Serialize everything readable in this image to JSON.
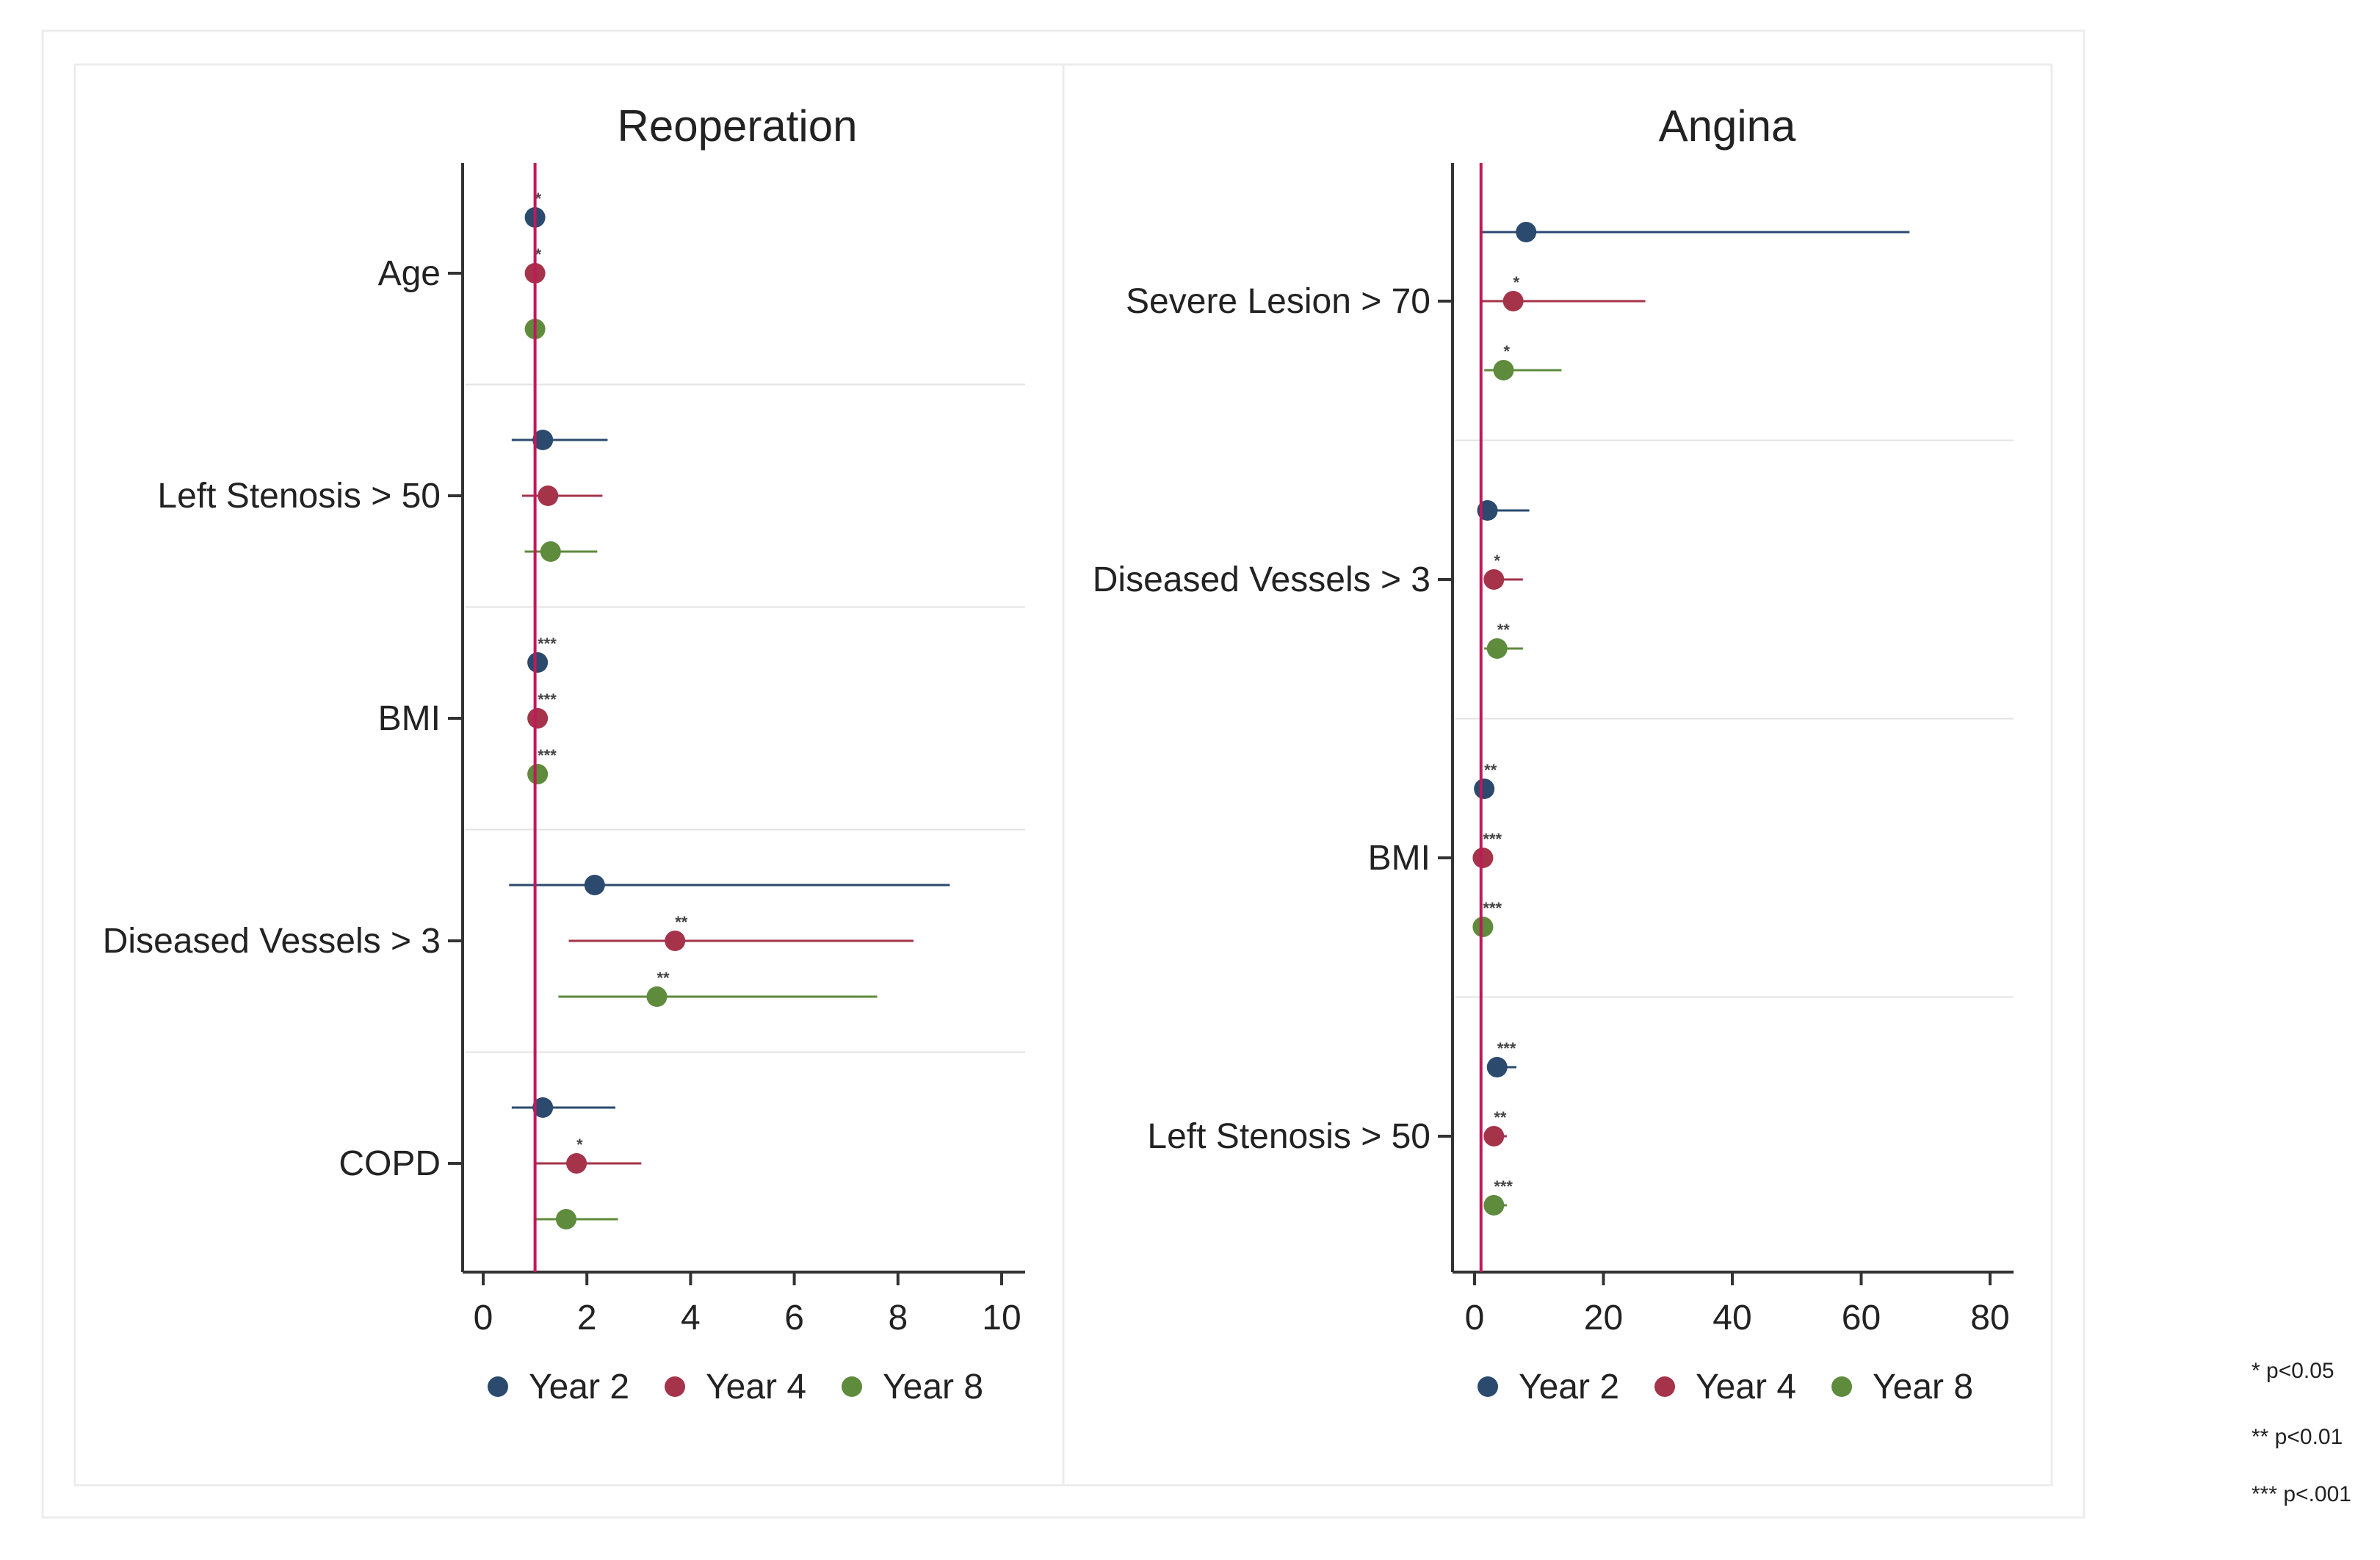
{
  "colors": {
    "year2": "#2b4a6e",
    "year4": "#a5334a",
    "year8": "#5e8b3c",
    "reference_line": "#c2185b",
    "axis": "#333333",
    "text": "#222222",
    "separator": "#e3e3e3",
    "frame": "#e6e6e6"
  },
  "chart_data": [
    {
      "type": "forest",
      "title": "Reoperation",
      "xlim": [
        -0.5,
        10.5
      ],
      "xticks": [
        0,
        2,
        4,
        6,
        8,
        10
      ],
      "reference_value": 1,
      "categories": [
        "Age",
        "Left Stenosis > 50",
        "BMI",
        "Diseased Vessels > 3",
        "COPD"
      ],
      "series": [
        {
          "name": "Year 2",
          "estimates": [
            1.0,
            1.15,
            1.05,
            2.15,
            1.15
          ],
          "lower": [
            1.0,
            0.55,
            1.0,
            0.5,
            0.55
          ],
          "upper": [
            1.0,
            2.4,
            1.05,
            9.0,
            2.55
          ],
          "significance": [
            "*",
            "",
            "***",
            "",
            ""
          ]
        },
        {
          "name": "Year 4",
          "estimates": [
            1.0,
            1.25,
            1.05,
            3.7,
            1.8
          ],
          "lower": [
            1.0,
            0.75,
            1.0,
            1.65,
            1.0
          ],
          "upper": [
            1.0,
            2.3,
            1.05,
            8.3,
            3.05
          ],
          "significance": [
            "*",
            "",
            "***",
            "**",
            "*"
          ]
        },
        {
          "name": "Year 8",
          "estimates": [
            1.0,
            1.3,
            1.05,
            3.35,
            1.6
          ],
          "lower": [
            1.0,
            0.8,
            1.0,
            1.45,
            1.0
          ],
          "upper": [
            1.0,
            2.2,
            1.05,
            7.6,
            2.6
          ],
          "significance": [
            "",
            "",
            "***",
            "**",
            ""
          ]
        }
      ],
      "legend": [
        "Year 2",
        "Year 4",
        "Year 8"
      ]
    },
    {
      "type": "forest",
      "title": "Angina",
      "xlim": [
        -3.5,
        81.5
      ],
      "xticks": [
        0,
        20,
        40,
        60,
        80
      ],
      "reference_value": 1,
      "categories": [
        "Severe Lesion > 70",
        "Diseased Vessels > 3",
        "BMI",
        "Left Stenosis > 50"
      ],
      "series": [
        {
          "name": "Year 2",
          "estimates": [
            8.0,
            2.0,
            1.5,
            3.5
          ],
          "lower": [
            1.0,
            1.0,
            1.0,
            2.0
          ],
          "upper": [
            67.5,
            8.5,
            2.0,
            6.5
          ],
          "significance": [
            "",
            "",
            "**",
            "***"
          ]
        },
        {
          "name": "Year 4",
          "estimates": [
            6.0,
            3.0,
            1.3,
            3.0
          ],
          "lower": [
            1.0,
            1.5,
            1.0,
            2.0
          ],
          "upper": [
            26.5,
            7.5,
            2.0,
            5.0
          ],
          "significance": [
            "*",
            "*",
            "***",
            "**"
          ]
        },
        {
          "name": "Year 8",
          "estimates": [
            4.5,
            3.5,
            1.3,
            3.0
          ],
          "lower": [
            1.5,
            1.5,
            1.0,
            2.0
          ],
          "upper": [
            13.5,
            7.5,
            2.0,
            5.0
          ],
          "significance": [
            "*",
            "**",
            "***",
            "***"
          ]
        }
      ],
      "legend": [
        "Year 2",
        "Year 4",
        "Year 8"
      ]
    }
  ],
  "footnotes": [
    "* p<0.05",
    "** p<0.01",
    "*** p<.001"
  ]
}
